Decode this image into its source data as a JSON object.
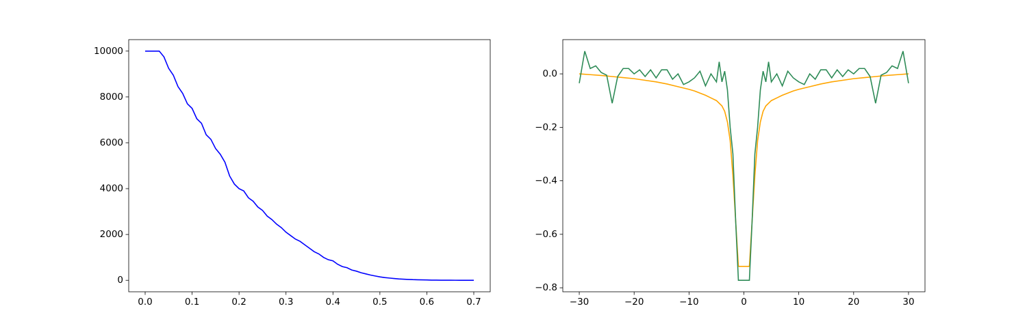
{
  "chart_data": [
    {
      "type": "line",
      "series": [
        {
          "color": "#0000ff",
          "x": [
            0,
            0.01,
            0.02,
            0.03,
            0.04,
            0.05,
            0.06,
            0.07,
            0.08,
            0.09,
            0.1,
            0.11,
            0.12,
            0.13,
            0.14,
            0.15,
            0.16,
            0.17,
            0.18,
            0.19,
            0.2,
            0.21,
            0.22,
            0.23,
            0.24,
            0.25,
            0.26,
            0.27,
            0.28,
            0.29,
            0.3,
            0.31,
            0.32,
            0.33,
            0.34,
            0.35,
            0.36,
            0.37,
            0.38,
            0.39,
            0.4,
            0.41,
            0.42,
            0.43,
            0.44,
            0.45,
            0.46,
            0.47,
            0.48,
            0.49,
            0.5,
            0.51,
            0.52,
            0.53,
            0.54,
            0.55,
            0.56,
            0.57,
            0.58,
            0.59,
            0.6,
            0.61,
            0.62,
            0.63,
            0.64,
            0.65,
            0.66,
            0.67,
            0.68,
            0.69,
            0.7
          ],
          "values": [
            10000,
            10000,
            10000,
            10000,
            9750,
            9250,
            8950,
            8450,
            8150,
            7700,
            7500,
            7050,
            6850,
            6350,
            6150,
            5750,
            5500,
            5150,
            4550,
            4200,
            4000,
            3900,
            3600,
            3450,
            3200,
            3050,
            2800,
            2650,
            2450,
            2300,
            2100,
            1950,
            1800,
            1700,
            1550,
            1400,
            1250,
            1150,
            1000,
            900,
            850,
            700,
            600,
            550,
            450,
            400,
            330,
            280,
            230,
            190,
            150,
            120,
            100,
            80,
            60,
            50,
            40,
            30,
            25,
            20,
            15,
            10,
            8,
            6,
            5,
            4,
            3,
            2,
            1,
            1,
            0
          ]
        }
      ],
      "xlim": [
        -0.035,
        0.735
      ],
      "xticks": [
        {
          "value": 0,
          "label": "0.0"
        },
        0.1,
        0.2,
        0.3,
        0.4,
        0.5,
        0.6,
        0.7
      ],
      "ylim": [
        -500,
        10500
      ],
      "yticks": [
        0,
        2000,
        4000,
        6000,
        8000,
        10000
      ]
    },
    {
      "type": "line",
      "series": [
        {
          "color": "#ffa500",
          "x": [
            -30,
            -28,
            -26,
            -24,
            -22,
            -20,
            -18,
            -16,
            -14,
            -12,
            -10,
            -9,
            -8,
            -7,
            -6,
            -5,
            -4,
            -3.5,
            -3,
            -2.5,
            -2,
            -1.5,
            -1,
            1,
            1.5,
            2,
            2.5,
            3,
            3.5,
            4,
            5,
            6,
            7,
            8,
            9,
            10,
            12,
            14,
            16,
            18,
            20,
            22,
            24,
            26,
            28,
            30
          ],
          "values": [
            0,
            -0.003,
            -0.006,
            -0.01,
            -0.014,
            -0.018,
            -0.024,
            -0.03,
            -0.038,
            -0.048,
            -0.058,
            -0.064,
            -0.072,
            -0.08,
            -0.09,
            -0.1,
            -0.12,
            -0.14,
            -0.18,
            -0.25,
            -0.38,
            -0.55,
            -0.72,
            -0.72,
            -0.55,
            -0.38,
            -0.25,
            -0.18,
            -0.14,
            -0.12,
            -0.1,
            -0.09,
            -0.08,
            -0.072,
            -0.064,
            -0.058,
            -0.048,
            -0.038,
            -0.03,
            -0.024,
            -0.018,
            -0.014,
            -0.01,
            -0.006,
            -0.003,
            0
          ]
        },
        {
          "color": "#2e8b57",
          "x": [
            -30,
            -29,
            -28,
            -27,
            -26,
            -25,
            -24,
            -23,
            -22,
            -21,
            -20,
            -19,
            -18,
            -17,
            -16,
            -15,
            -14,
            -13,
            -12,
            -11,
            -10,
            -9,
            -8,
            -7,
            -6,
            -5,
            -4.5,
            -4,
            -3.5,
            -3,
            -2.5,
            -2,
            -1.5,
            -1,
            1,
            1.5,
            2,
            2.5,
            3,
            3.5,
            4,
            4.5,
            5,
            6,
            7,
            8,
            9,
            10,
            11,
            12,
            13,
            14,
            15,
            16,
            17,
            18,
            19,
            20,
            21,
            22,
            23,
            24,
            25,
            26,
            27,
            28,
            29,
            30
          ],
          "values": [
            -0.035,
            0.085,
            0.02,
            0.03,
            0.005,
            -0.005,
            -0.11,
            -0.01,
            0.02,
            0.02,
            0.0,
            0.015,
            -0.01,
            0.015,
            -0.015,
            0.015,
            0.015,
            -0.02,
            0.0,
            -0.04,
            -0.03,
            -0.015,
            0.01,
            -0.045,
            0.0,
            -0.03,
            0.045,
            -0.03,
            0.01,
            -0.06,
            -0.2,
            -0.3,
            -0.55,
            -0.772,
            -0.772,
            -0.55,
            -0.3,
            -0.2,
            -0.06,
            0.01,
            -0.03,
            0.045,
            -0.03,
            0.0,
            -0.045,
            0.01,
            -0.015,
            -0.03,
            -0.04,
            0.0,
            -0.02,
            0.015,
            0.015,
            -0.015,
            0.015,
            -0.01,
            0.015,
            0.0,
            0.02,
            0.02,
            -0.01,
            -0.11,
            -0.005,
            0.005,
            0.03,
            0.02,
            0.085,
            -0.035
          ]
        }
      ],
      "xlim": [
        -33,
        33
      ],
      "xticks": [
        {
          "value": -30,
          "label": "−30"
        },
        {
          "value": -20,
          "label": "−20"
        },
        {
          "value": -10,
          "label": "−10"
        },
        0,
        10,
        20,
        30
      ],
      "ylim": [
        -0.815,
        0.128
      ],
      "yticks": [
        {
          "value": -0.8,
          "label": "−0.8"
        },
        {
          "value": -0.6,
          "label": "−0.6"
        },
        {
          "value": -0.4,
          "label": "−0.4"
        },
        {
          "value": -0.2,
          "label": "−0.2"
        },
        {
          "value": 0,
          "label": "0.0"
        }
      ]
    }
  ]
}
